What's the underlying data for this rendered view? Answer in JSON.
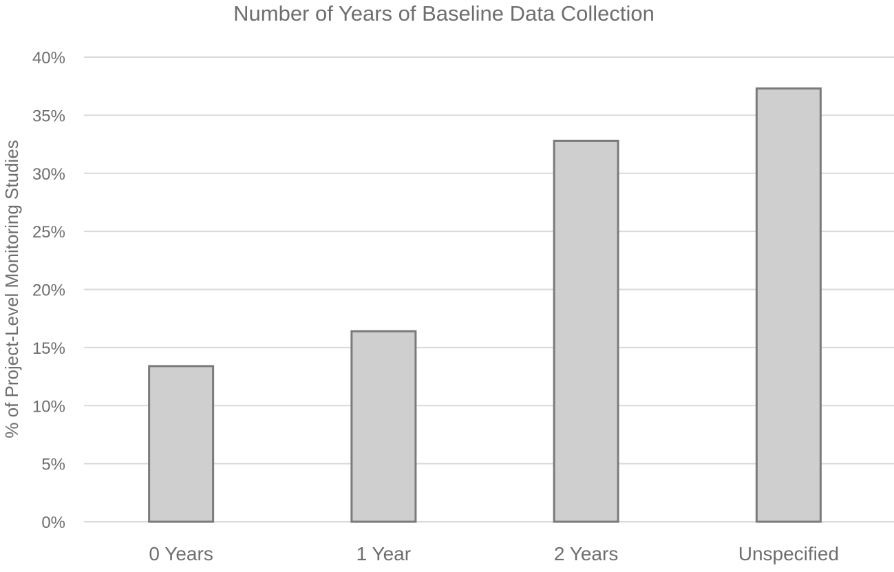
{
  "chart_data": {
    "type": "bar",
    "title": "Number of Years of Baseline Data Collection",
    "xlabel": "",
    "ylabel": "% of Project-Level Monitoring Studies",
    "categories": [
      "0 Years",
      "1 Year",
      "2 Years",
      "Unspecified"
    ],
    "values": [
      13.4,
      16.4,
      32.8,
      37.3
    ],
    "ylim": [
      0,
      40
    ],
    "yticks": [
      0,
      5,
      10,
      15,
      20,
      25,
      30,
      35,
      40
    ],
    "ytick_labels": [
      "0%",
      "5%",
      "10%",
      "15%",
      "20%",
      "25%",
      "30%",
      "35%",
      "40%"
    ],
    "grid": true,
    "legend": "none",
    "colors": {
      "bar_fill": "#d0cfcf",
      "bar_stroke": "#7a7a7a",
      "grid": "#d9d9d9",
      "text": "#6e6e6e"
    }
  }
}
